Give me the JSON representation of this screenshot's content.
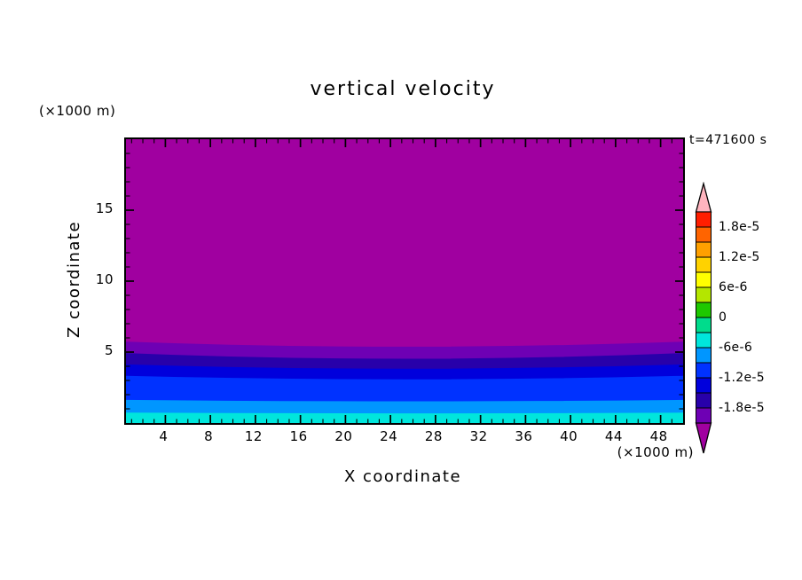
{
  "chart_data": {
    "type": "heatmap",
    "title": "vertical velocity",
    "time_annotation": "t=471600 s",
    "xlabel": "X coordinate",
    "ylabel": "Z coordinate",
    "x_unit": "(×1000 m)",
    "y_unit": "(×1000 m)",
    "xlim": [
      0.5,
      50
    ],
    "ylim": [
      0,
      20
    ],
    "x_ticks": [
      4,
      8,
      12,
      16,
      20,
      24,
      28,
      32,
      36,
      40,
      44,
      48
    ],
    "y_ticks": [
      5,
      10,
      15
    ],
    "grid": false,
    "legend_position": "right",
    "colorbar": {
      "tick_labels": [
        "1.8e-5",
        "1.2e-5",
        "6e-6",
        "0",
        "-6e-6",
        "-1.2e-5",
        "-1.8e-5"
      ],
      "contour_interval": 3e-06,
      "over_color": "#FFB4BE",
      "under_color": "#A000A0",
      "segment_colors_top_to_bottom": [
        "#FF1E00",
        "#FF6400",
        "#FFA000",
        "#FFD200",
        "#FFFF00",
        "#B4E600",
        "#1EC800",
        "#00DC8C",
        "#00E6DC",
        "#0096FF",
        "#0032FF",
        "#0000DC",
        "#2800AA",
        "#6E00B4"
      ]
    },
    "bands_top_to_bottom": [
      {
        "color": "#A000A0",
        "top_boundary_z": [
          20,
          20,
          20
        ]
      },
      {
        "color": "#6E00B4",
        "top_boundary_z": [
          5.7,
          5.35,
          5.7
        ]
      },
      {
        "color": "#2800AA",
        "top_boundary_z": [
          4.9,
          4.5,
          4.9
        ]
      },
      {
        "color": "#0000DC",
        "top_boundary_z": [
          4.1,
          3.8,
          4.1
        ]
      },
      {
        "color": "#0032FF",
        "top_boundary_z": [
          3.3,
          3.05,
          3.3
        ]
      },
      {
        "color": "#0096FF",
        "top_boundary_z": [
          1.6,
          1.5,
          1.6
        ]
      },
      {
        "color": "#00E6DC",
        "top_boundary_z": [
          0.7,
          0.65,
          0.7
        ]
      }
    ]
  }
}
